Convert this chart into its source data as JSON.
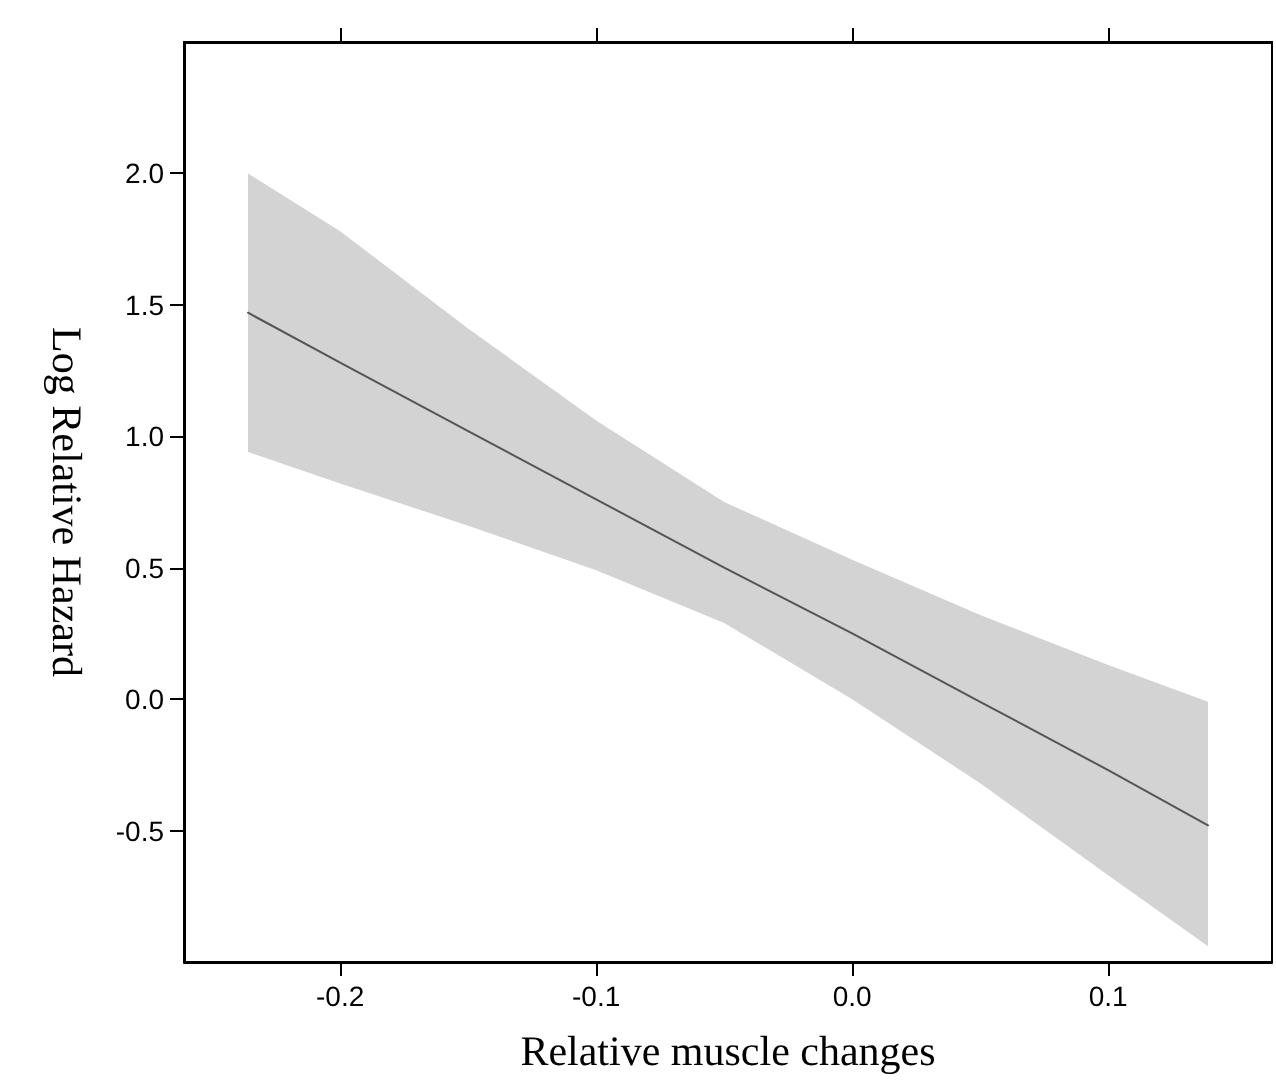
{
  "chart_data": {
    "type": "line",
    "xlabel": "Relative muscle changes",
    "ylabel": "Log Relative Hazard",
    "xlim": [
      -0.261,
      0.164
    ],
    "ylim": [
      -1.0,
      2.5
    ],
    "xticks": [
      -0.2,
      -0.1,
      {
        "value": 0,
        "label": "0.0"
      },
      0.1
    ],
    "yticks": [
      {
        "value": -0.5,
        "label": "-0.5"
      },
      {
        "value": 0,
        "label": "0.0"
      },
      {
        "value": 0.5,
        "label": "0.5"
      },
      {
        "value": 1,
        "label": "1.0"
      },
      {
        "value": 1.5,
        "label": "1.5"
      },
      {
        "value": 2,
        "label": "2.0"
      }
    ],
    "grid": false,
    "marker": "none",
    "line_style": "solid",
    "series": [
      {
        "color": "#555555",
        "x": [
          -0.236,
          -0.2,
          -0.15,
          -0.1,
          -0.05,
          0,
          0.05,
          0.1,
          0.139
        ],
        "values": [
          1.47,
          1.28,
          1.02,
          0.76,
          0.5,
          0.25,
          -0.01,
          -0.27,
          -0.48
        ],
        "lower": [
          0.94,
          0.82,
          0.66,
          0.49,
          0.29,
          0.0,
          -0.32,
          -0.67,
          -0.94
        ],
        "upper": [
          2.0,
          1.78,
          1.41,
          1.06,
          0.75,
          0.53,
          0.32,
          0.13,
          -0.01
        ]
      }
    ]
  }
}
